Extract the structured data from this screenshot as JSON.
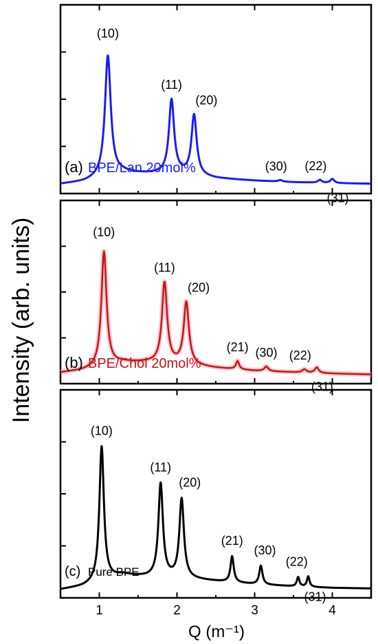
{
  "chart_data": {
    "type": "line",
    "layout": "stacked",
    "shared_x_axis": true,
    "xlabel": "Q (m⁻¹)",
    "ylabel": "Intensity (arb. units)",
    "xlim": [
      0.5,
      4.5
    ],
    "x_ticks": [
      1,
      2,
      3,
      4
    ],
    "grid": false,
    "panels": [
      {
        "tag": "(a)",
        "sample": "BPE/Lan 20mol%",
        "color": "#1a1aff",
        "ylim": [
          0,
          10
        ],
        "baseline": {
          "x": [
            0.5,
            0.8,
            1.0,
            1.3,
            1.6,
            2.0,
            2.5,
            3.0,
            3.5,
            4.0,
            4.5
          ],
          "y": [
            0.5,
            0.62,
            0.8,
            1.1,
            1.05,
            1.05,
            0.8,
            0.68,
            0.6,
            0.55,
            0.52
          ]
        },
        "peaks": [
          {
            "label": "(10)",
            "q": 1.11,
            "height": 6.4,
            "width": 0.045
          },
          {
            "label": "(11)",
            "q": 1.93,
            "height": 3.9,
            "width": 0.04
          },
          {
            "label": "(20)",
            "q": 2.22,
            "height": 3.2,
            "width": 0.04
          },
          {
            "label": "(30)",
            "q": 3.33,
            "height": 0.08,
            "width": 0.03
          },
          {
            "label": "(22)",
            "q": 3.84,
            "height": 0.15,
            "width": 0.03
          },
          {
            "label": "(31)",
            "q": 4.0,
            "height": 0.22,
            "width": 0.03
          }
        ]
      },
      {
        "tag": "(b)",
        "sample": "BPE/Chol 20mol%",
        "color": "#cc1111",
        "ylim": [
          0,
          10
        ],
        "baseline": {
          "x": [
            0.5,
            0.8,
            1.0,
            1.3,
            1.6,
            2.0,
            2.5,
            3.0,
            3.5,
            4.0,
            4.5
          ],
          "y": [
            0.6,
            0.72,
            0.85,
            1.15,
            1.15,
            1.05,
            0.85,
            0.7,
            0.62,
            0.55,
            0.5
          ]
        },
        "peaks": [
          {
            "label": "(10)",
            "q": 1.06,
            "height": 6.3,
            "width": 0.04
          },
          {
            "label": "(11)",
            "q": 1.84,
            "height": 4.4,
            "width": 0.04
          },
          {
            "label": "(20)",
            "q": 2.12,
            "height": 3.4,
            "width": 0.04
          },
          {
            "label": "(21)",
            "q": 2.78,
            "height": 0.45,
            "width": 0.025
          },
          {
            "label": "(30)",
            "q": 3.15,
            "height": 0.25,
            "width": 0.03
          },
          {
            "label": "(22)",
            "q": 3.64,
            "height": 0.18,
            "width": 0.03
          },
          {
            "label": "(31)",
            "q": 3.8,
            "height": 0.3,
            "width": 0.03
          }
        ]
      },
      {
        "tag": "(c)",
        "sample": "Pure BPE",
        "color": "#000000",
        "ylim": [
          0,
          10
        ],
        "baseline": {
          "x": [
            0.5,
            0.8,
            1.0,
            1.3,
            1.6,
            2.0,
            2.5,
            3.0,
            3.5,
            4.0,
            4.5
          ],
          "y": [
            0.4,
            0.55,
            0.75,
            1.1,
            1.0,
            0.95,
            0.8,
            0.65,
            0.55,
            0.48,
            0.45
          ]
        },
        "peaks": [
          {
            "label": "(10)",
            "q": 1.03,
            "height": 6.5,
            "width": 0.035
          },
          {
            "label": "(11)",
            "q": 1.79,
            "height": 4.5,
            "width": 0.035
          },
          {
            "label": "(20)",
            "q": 2.06,
            "height": 3.8,
            "width": 0.035
          },
          {
            "label": "(21)",
            "q": 2.71,
            "height": 1.25,
            "width": 0.025
          },
          {
            "label": "(30)",
            "q": 3.08,
            "height": 0.9,
            "width": 0.025
          },
          {
            "label": "(22)",
            "q": 3.56,
            "height": 0.45,
            "width": 0.02
          },
          {
            "label": "(31)",
            "q": 3.69,
            "height": 0.5,
            "width": 0.02
          }
        ]
      }
    ]
  }
}
